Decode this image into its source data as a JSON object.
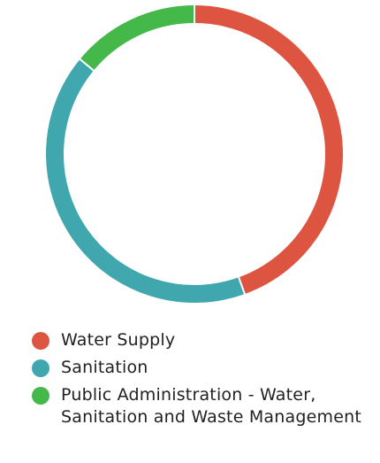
{
  "chart_data": {
    "type": "pie",
    "variant": "donut",
    "title": "",
    "legend_position": "bottom",
    "series": [
      {
        "name": "Water Supply",
        "value": 44.5,
        "color": "#dd5541"
      },
      {
        "name": "Sanitation",
        "value": 41.5,
        "color": "#3fa7ad"
      },
      {
        "name": "Public Administration - Water, Sanitation and Waste Management",
        "value": 14.0,
        "color": "#45b84a"
      }
    ]
  }
}
